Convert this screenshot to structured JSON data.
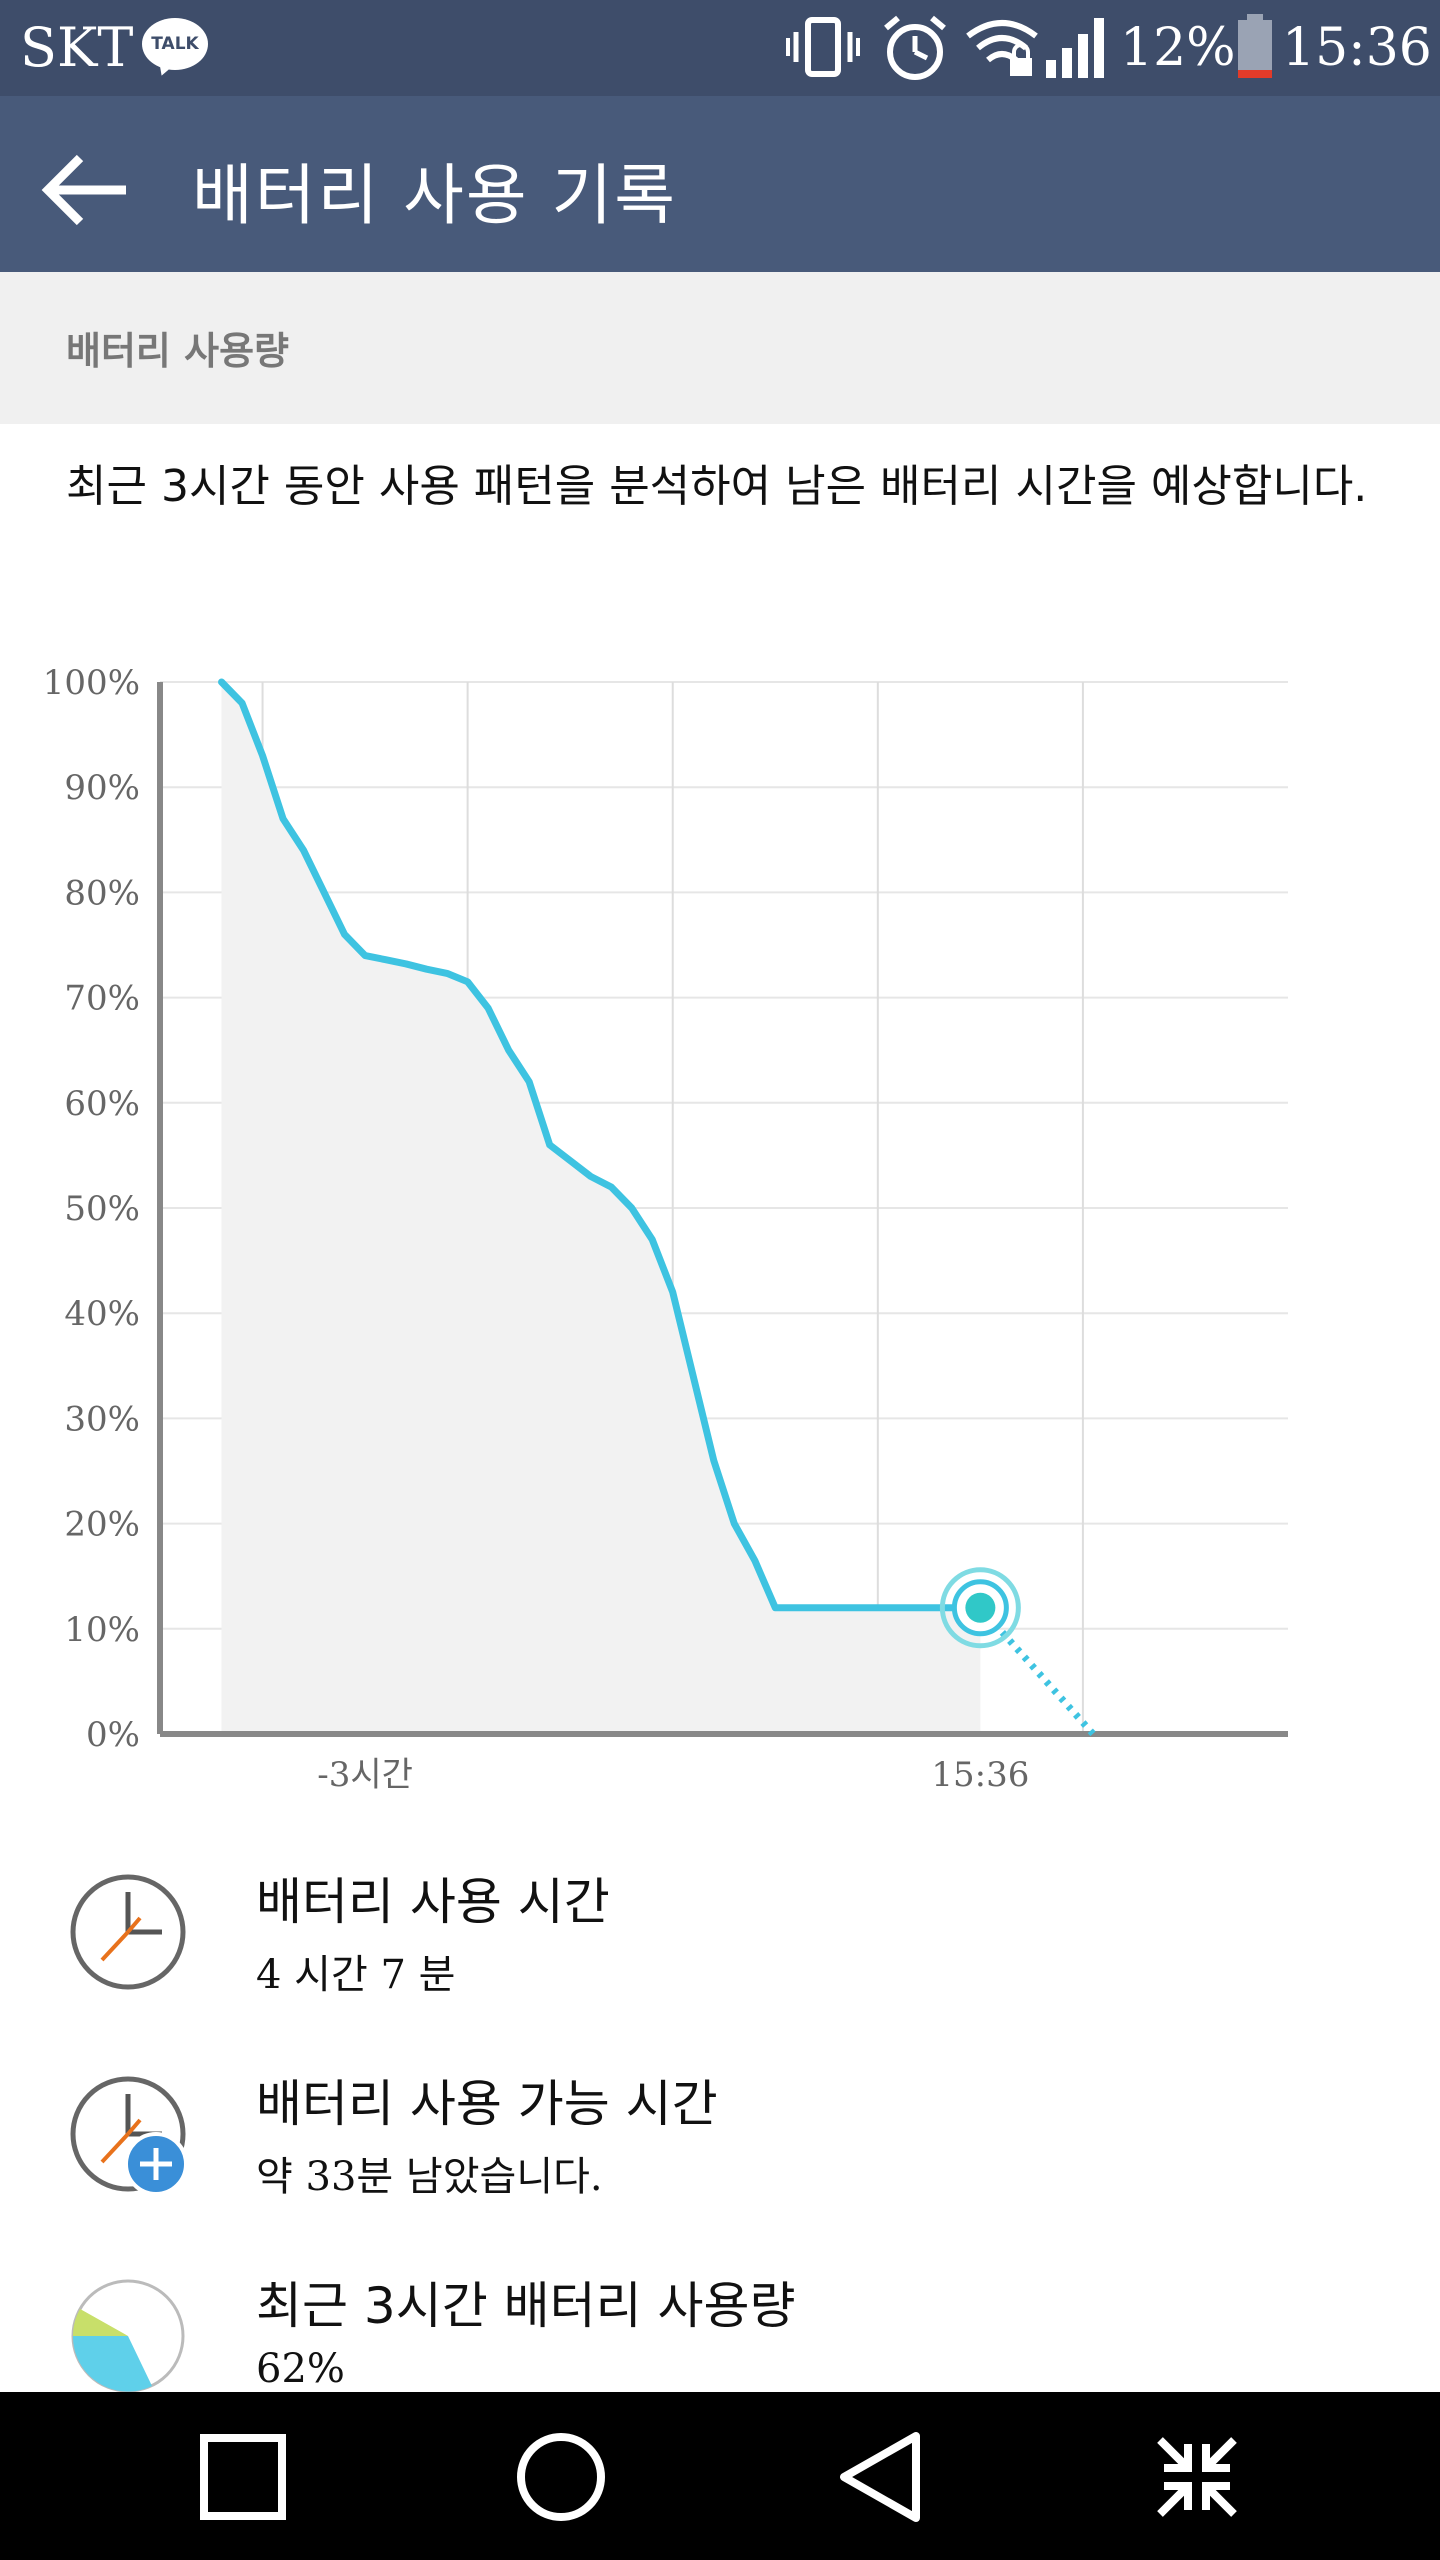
{
  "status_bar": {
    "carrier": "SKT",
    "talk_badge": "TALK",
    "battery_percent": "12%",
    "time": "15:36",
    "icons": [
      "vibrate-icon",
      "alarm-icon",
      "wifi-lock-icon",
      "signal-icon",
      "battery-icon"
    ]
  },
  "toolbar": {
    "back_icon": "arrow-left-icon",
    "title": "배터리 사용 기록"
  },
  "section": {
    "header": "배터리 사용량",
    "description": "최근 3시간 동안 사용 패턴을 분석하여 남은 배터리 시간을 예상합니다."
  },
  "chart_data": {
    "type": "line",
    "y_ticks": [
      "100%",
      "90%",
      "80%",
      "70%",
      "60%",
      "50%",
      "40%",
      "30%",
      "20%",
      "10%",
      "0%"
    ],
    "x_ticks": [
      "-3시간",
      "15:36"
    ],
    "ylim": [
      0,
      100
    ],
    "xlim": [
      -4,
      1.5
    ],
    "series": [
      {
        "color": "#3ec3e1",
        "style": "solid",
        "x": [
          -3.7,
          -3.6,
          -3.5,
          -3.4,
          -3.3,
          -3.2,
          -3.1,
          -3.0,
          -2.9,
          -2.8,
          -2.7,
          -2.6,
          -2.5,
          -2.4,
          -2.3,
          -2.2,
          -2.1,
          -2.0,
          -1.9,
          -1.8,
          -1.7,
          -1.6,
          -1.5,
          -1.4,
          -1.3,
          -1.2,
          -1.1,
          -1.0,
          -0.9,
          -0.8,
          -0.7,
          -0.6,
          -0.5,
          -0.4,
          -0.3,
          -0.2,
          -0.1,
          0.0
        ],
        "y": [
          100,
          98,
          93,
          87,
          84,
          80,
          76,
          74,
          73.6,
          73.2,
          72.7,
          72.3,
          71.5,
          69,
          65,
          62,
          56,
          54.5,
          53,
          52,
          50,
          47,
          42,
          34,
          26,
          20,
          16.5,
          12,
          12,
          12,
          12,
          12,
          12,
          12,
          12,
          12,
          12,
          12
        ]
      },
      {
        "color": "#3ec3e1",
        "style": "dotted",
        "x": [
          0.0,
          0.55
        ],
        "y": [
          12,
          0
        ]
      }
    ],
    "current_point": {
      "x": 0.0,
      "y": 12,
      "label": "15:36"
    },
    "grid": true
  },
  "list": [
    {
      "icon": "clock-icon",
      "title": "배터리 사용 시간",
      "subtitle": "4 시간 7 분"
    },
    {
      "icon": "clock-plus-icon",
      "title": "배터리 사용 가능 시간",
      "subtitle": "약 33분 남았습니다."
    },
    {
      "icon": "pie-chart-icon",
      "title": "최근 3시간 배터리 사용량",
      "subtitle": "62%"
    }
  ],
  "nav_bar": {
    "buttons": [
      "recents-icon",
      "home-icon",
      "back-icon",
      "collapse-icon"
    ]
  },
  "colors": {
    "status_bar": "#3e4d6a",
    "toolbar": "#485a7a",
    "line": "#3ec3e1",
    "fill": "#f2f2f2"
  }
}
